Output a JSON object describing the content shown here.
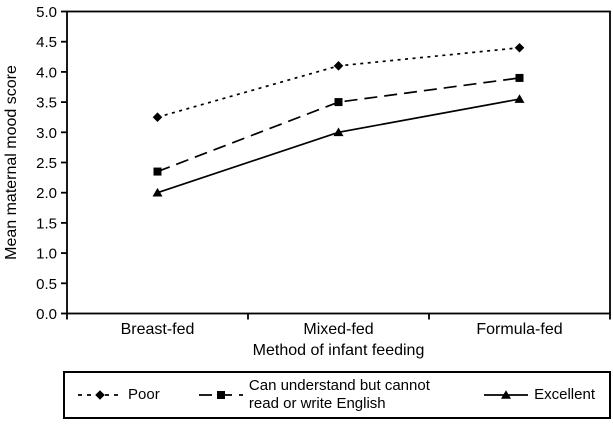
{
  "figure": {
    "background_color": "#ffffff",
    "ink_color": "#000000"
  },
  "chart_data": {
    "type": "line",
    "categories": [
      "Breast-fed",
      "Mixed-fed",
      "Formula-fed"
    ],
    "series": [
      {
        "name": "Poor",
        "values": [
          3.25,
          4.1,
          4.4
        ],
        "marker": "diamond",
        "line_style": "dotted"
      },
      {
        "name": "Can understand but cannot read or write English",
        "values": [
          2.35,
          3.5,
          3.9
        ],
        "marker": "square",
        "line_style": "dashed"
      },
      {
        "name": "Excellent",
        "values": [
          2.0,
          3.0,
          3.55
        ],
        "marker": "triangle",
        "line_style": "solid"
      }
    ],
    "title": "",
    "xlabel": "Method of infant feeding",
    "ylabel": "Mean maternal mood score",
    "ylim": [
      0.0,
      5.0
    ],
    "ytick_step": 0.5,
    "ytick_labels": [
      "0.0",
      "0.5",
      "1.0",
      "1.5",
      "2.0",
      "2.5",
      "3.0",
      "3.5",
      "4.0",
      "4.5",
      "5.0"
    ],
    "grid": false,
    "plot_border": true,
    "legend_position": "bottom",
    "color": "#000000"
  }
}
